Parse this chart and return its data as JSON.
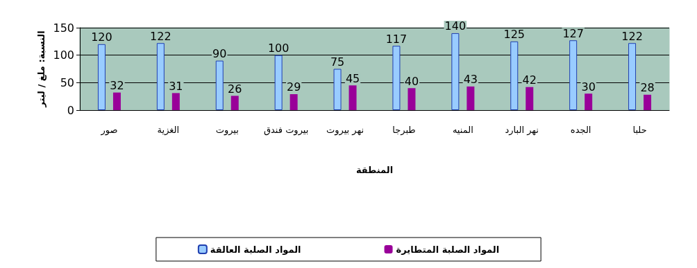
{
  "chart_data": {
    "type": "bar",
    "xlabel": "المنطقة",
    "ylabel": "النسبة: ملغ / ليتر",
    "categories": [
      "صور",
      "الغزية",
      "بيروت",
      "بيروت فندق",
      "نهر بيروت",
      "طبرجا",
      "المنيه",
      "نهر البارد",
      "الجده",
      "حلبا"
    ],
    "series": [
      {
        "name": "المواد الصلبة العالقة",
        "color": "#99ccff",
        "values": [
          120,
          122,
          90,
          100,
          75,
          117,
          140,
          125,
          127,
          122
        ]
      },
      {
        "name": "المواد الصلبة المتطايرة",
        "color": "#990099",
        "values": [
          32,
          31,
          26,
          29,
          45,
          40,
          43,
          42,
          30,
          28
        ]
      }
    ],
    "ylim": [
      0,
      150
    ],
    "yticks": [
      0,
      50,
      100,
      150
    ],
    "grid": "y",
    "legend": "bottom",
    "data_labels": true
  }
}
